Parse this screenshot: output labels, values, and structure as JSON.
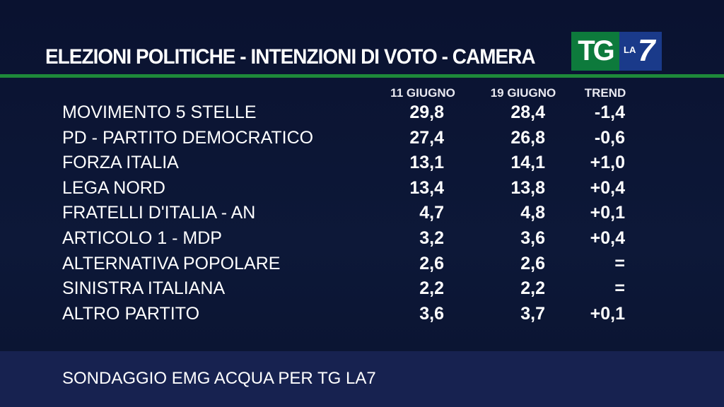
{
  "header": {
    "title": "ELEZIONI POLITICHE - INTENZIONI DI VOTO - CAMERA",
    "logo": {
      "tg": "TG",
      "la": "LA",
      "seven": "7"
    }
  },
  "table": {
    "columns": [
      "11 GIUGNO",
      "19 GIUGNO",
      "TREND"
    ],
    "rows": [
      [
        "MOVIMENTO 5 STELLE",
        "29,8",
        "28,4",
        "-1,4"
      ],
      [
        "PD - PARTITO DEMOCRATICO",
        "27,4",
        "26,8",
        "-0,6"
      ],
      [
        "FORZA ITALIA",
        "13,1",
        "14,1",
        "+1,0"
      ],
      [
        "LEGA NORD",
        "13,4",
        "13,8",
        "+0,4"
      ],
      [
        "FRATELLI D'ITALIA - AN",
        "4,7",
        "4,8",
        "+0,1"
      ],
      [
        "ARTICOLO 1 - MDP",
        "3,2",
        "3,6",
        "+0,4"
      ],
      [
        "ALTERNATIVA POPOLARE",
        "2,6",
        "2,6",
        "="
      ],
      [
        "SINISTRA ITALIANA",
        "2,2",
        "2,2",
        "="
      ],
      [
        "ALTRO PARTITO",
        "3,6",
        "3,7",
        "+0,1"
      ]
    ]
  },
  "footer": {
    "text": "SONDAGGIO EMG ACQUA PER TG LA7"
  }
}
